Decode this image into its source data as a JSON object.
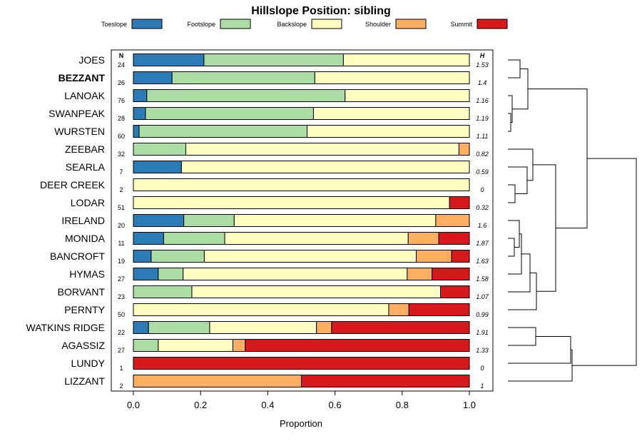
{
  "chart_data": {
    "type": "stacked-bar-with-dendrogram",
    "title": "Hillslope Position: sibling",
    "xlabel": "Proportion",
    "xlim": [
      0,
      1
    ],
    "x_ticks": [
      "0.0",
      "0.2",
      "0.4",
      "0.6",
      "0.8",
      "1.0"
    ],
    "n_header": "N",
    "h_header": "H",
    "legend": [
      {
        "name": "Toeslope",
        "color": "#2c7bb6"
      },
      {
        "name": "Footslope",
        "color": "#abdda4"
      },
      {
        "name": "Backslope",
        "color": "#ffffbf"
      },
      {
        "name": "Shoulder",
        "color": "#fdae61"
      },
      {
        "name": "Summit",
        "color": "#d7191c"
      }
    ],
    "rows": [
      {
        "name": "JOES",
        "bold": false,
        "n": "24",
        "h": "1.53",
        "values": [
          0.21,
          0.415,
          0.375,
          0,
          0
        ]
      },
      {
        "name": "BEZZANT",
        "bold": true,
        "n": "26",
        "h": "1.4",
        "values": [
          0.115,
          0.425,
          0.46,
          0,
          0
        ]
      },
      {
        "name": "LANOAK",
        "bold": false,
        "n": "76",
        "h": "1.16",
        "values": [
          0.04,
          0.59,
          0.37,
          0,
          0
        ]
      },
      {
        "name": "SWANPEAK",
        "bold": false,
        "n": "28",
        "h": "1.19",
        "values": [
          0.036,
          0.5,
          0.464,
          0,
          0
        ]
      },
      {
        "name": "WURSTEN",
        "bold": false,
        "n": "60",
        "h": "1.11",
        "values": [
          0.017,
          0.5,
          0.483,
          0,
          0
        ]
      },
      {
        "name": "ZEEBAR",
        "bold": false,
        "n": "32",
        "h": "0.82",
        "values": [
          0,
          0.156,
          0.813,
          0.031,
          0
        ]
      },
      {
        "name": "SEARLA",
        "bold": false,
        "n": "7",
        "h": "0.59",
        "values": [
          0.143,
          0,
          0.857,
          0,
          0
        ]
      },
      {
        "name": "DEER CREEK",
        "bold": false,
        "n": "2",
        "h": "0",
        "values": [
          0,
          0,
          1,
          0,
          0
        ]
      },
      {
        "name": "LODAR",
        "bold": false,
        "n": "51",
        "h": "0.32",
        "values": [
          0,
          0,
          0.941,
          0,
          0.059
        ]
      },
      {
        "name": "IRELAND",
        "bold": false,
        "n": "20",
        "h": "1.6",
        "values": [
          0.15,
          0.15,
          0.6,
          0.1,
          0
        ]
      },
      {
        "name": "MONIDA",
        "bold": false,
        "n": "11",
        "h": "1.87",
        "values": [
          0.09,
          0.182,
          0.546,
          0.091,
          0.091
        ]
      },
      {
        "name": "BANCROFT",
        "bold": false,
        "n": "19",
        "h": "1.63",
        "values": [
          0.053,
          0.158,
          0.631,
          0.105,
          0.053
        ]
      },
      {
        "name": "HYMAS",
        "bold": false,
        "n": "27",
        "h": "1.58",
        "values": [
          0.074,
          0.074,
          0.667,
          0.074,
          0.111
        ]
      },
      {
        "name": "BORVANT",
        "bold": false,
        "n": "23",
        "h": "1.07",
        "values": [
          0,
          0.174,
          0.74,
          0,
          0.086
        ]
      },
      {
        "name": "PERNTY",
        "bold": false,
        "n": "50",
        "h": "0.99",
        "values": [
          0,
          0,
          0.76,
          0.06,
          0.18
        ]
      },
      {
        "name": "WATKINS RIDGE",
        "bold": false,
        "n": "22",
        "h": "1.91",
        "values": [
          0.045,
          0.182,
          0.318,
          0.045,
          0.41
        ]
      },
      {
        "name": "AGASSIZ",
        "bold": false,
        "n": "27",
        "h": "1.33",
        "values": [
          0,
          0.074,
          0.222,
          0.037,
          0.667
        ]
      },
      {
        "name": "LUNDY",
        "bold": false,
        "n": "1",
        "h": "0",
        "values": [
          0,
          0,
          0,
          0,
          1
        ]
      },
      {
        "name": "LIZZANT",
        "bold": false,
        "n": "2",
        "h": "1",
        "values": [
          0,
          0,
          0,
          0.5,
          0.5
        ]
      }
    ]
  }
}
